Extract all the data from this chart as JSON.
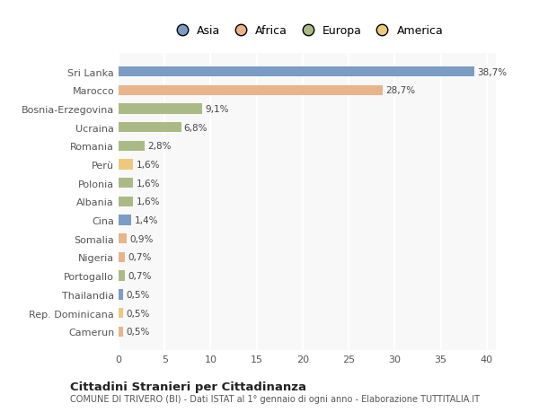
{
  "categories": [
    "Sri Lanka",
    "Marocco",
    "Bosnia-Erzegovina",
    "Ucraina",
    "Romania",
    "Perù",
    "Polonia",
    "Albania",
    "Cina",
    "Somalia",
    "Nigeria",
    "Portogallo",
    "Thailandia",
    "Rep. Dominicana",
    "Camerun"
  ],
  "values": [
    38.7,
    28.7,
    9.1,
    6.8,
    2.8,
    1.6,
    1.6,
    1.6,
    1.4,
    0.9,
    0.7,
    0.7,
    0.5,
    0.5,
    0.5
  ],
  "labels": [
    "38,7%",
    "28,7%",
    "9,1%",
    "6,8%",
    "2,8%",
    "1,6%",
    "1,6%",
    "1,6%",
    "1,4%",
    "0,9%",
    "0,7%",
    "0,7%",
    "0,5%",
    "0,5%",
    "0,5%"
  ],
  "continent": [
    "Asia",
    "Africa",
    "Europa",
    "Europa",
    "Europa",
    "America",
    "Europa",
    "Europa",
    "Asia",
    "Africa",
    "Africa",
    "Europa",
    "Asia",
    "America",
    "Africa"
  ],
  "colors": {
    "Asia": "#7b9cc4",
    "Africa": "#e8b48a",
    "Europa": "#aaba85",
    "America": "#eec97a"
  },
  "xlim": [
    0,
    41
  ],
  "xticks": [
    0,
    5,
    10,
    15,
    20,
    25,
    30,
    35,
    40
  ],
  "title": "Cittadini Stranieri per Cittadinanza",
  "subtitle": "COMUNE DI TRIVERO (BI) - Dati ISTAT al 1° gennaio di ogni anno - Elaborazione TUTTITALIA.IT",
  "background_color": "#ffffff",
  "plot_bg_color": "#f8f8f8",
  "grid_color": "#ffffff",
  "bar_height": 0.55,
  "legend_order": [
    "Asia",
    "Africa",
    "Europa",
    "America"
  ]
}
